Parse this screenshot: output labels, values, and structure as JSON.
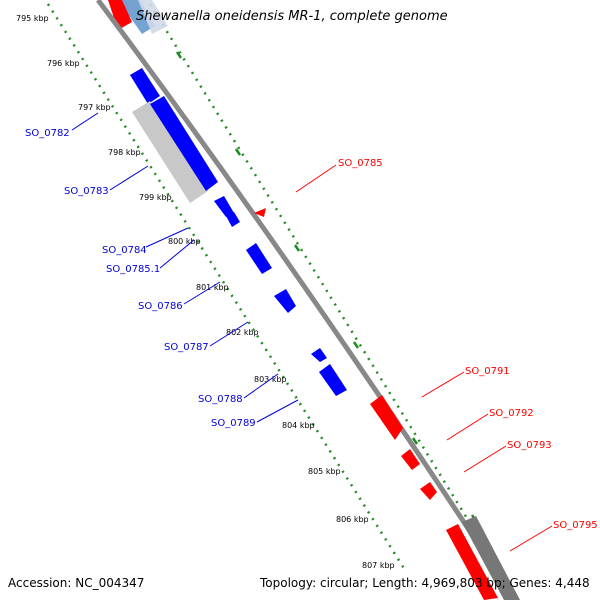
{
  "title": "Shewanella oneidensis MR-1, complete genome",
  "accession": "Accession: NC_004347",
  "topology": "Topology: circular; Length: 4,969,803 bp; Genes: 4,448",
  "colors": {
    "forward_gene": "#ff0000",
    "reverse_gene": "#0000ff",
    "forward_label": "#ff0000",
    "reverse_label": "#0000dd",
    "backbone": "#888888",
    "tick_ring": "#228b22",
    "rna_gene": "#c0c0c0",
    "pseudo_gene": "#777777",
    "faded_blue": "#6699cc"
  },
  "kbp_ticks": [
    "795 kbp",
    "796 kbp",
    "797 kbp",
    "798 kbp",
    "799 kbp",
    "800 kbp",
    "801 kbp",
    "802 kbp",
    "803 kbp",
    "804 kbp",
    "805 kbp",
    "806 kbp",
    "807 kbp"
  ],
  "reverse_genes": [
    "SO_0782",
    "SO_0783",
    "SO_0784",
    "SO_0785.1",
    "SO_0786",
    "SO_0787",
    "SO_0788",
    "SO_0789"
  ],
  "forward_genes": [
    "SO_0785",
    "SO_0791",
    "SO_0792",
    "SO_0793",
    "SO_0795"
  ]
}
